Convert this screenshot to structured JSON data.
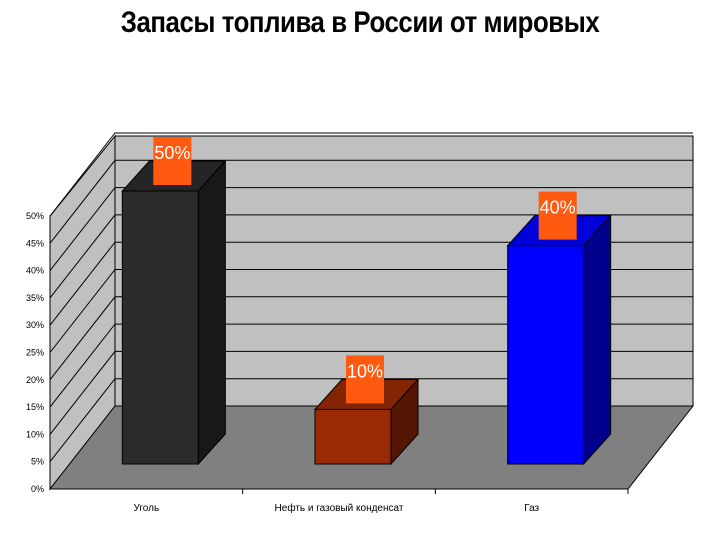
{
  "chart_data": {
    "type": "bar",
    "title": "Запасы топлива в России от мировых",
    "categories": [
      "Уголь",
      "Нефть и газовый конденсат",
      "Газ"
    ],
    "values": [
      50,
      10,
      40
    ],
    "data_labels": [
      "50%",
      "10%",
      "40%"
    ],
    "ylim": [
      0,
      50
    ],
    "yticks": [
      0,
      5,
      10,
      15,
      20,
      25,
      30,
      35,
      40,
      45,
      50
    ],
    "ytick_labels": [
      "0%",
      "5%",
      "10%",
      "15%",
      "20%",
      "25%",
      "30%",
      "35%",
      "40%",
      "45%",
      "50%"
    ],
    "xlabel": "",
    "ylabel": "",
    "grid": true,
    "three_d": true,
    "legend": "none",
    "colors": [
      "#2b2b2b",
      "#9a2a05",
      "#0000ff"
    ],
    "label_bg_color": "#ff5a10",
    "wall_color": "#c0c0c0",
    "floor_color": "#808080"
  }
}
